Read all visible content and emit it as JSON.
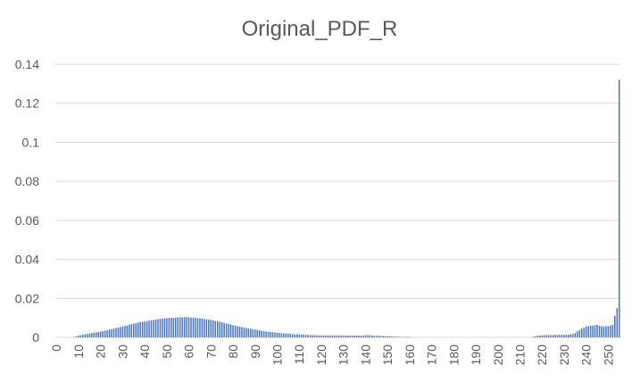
{
  "chart_data": {
    "type": "bar",
    "title": "Original_PDF_R",
    "color": "#4472c4",
    "categories": [
      "0",
      null,
      null,
      null,
      null,
      null,
      null,
      null,
      null,
      null,
      "10",
      null,
      null,
      null,
      null,
      null,
      null,
      null,
      null,
      null,
      "20",
      null,
      null,
      null,
      null,
      null,
      null,
      null,
      null,
      null,
      "30",
      null,
      null,
      null,
      null,
      null,
      null,
      null,
      null,
      null,
      "40",
      null,
      null,
      null,
      null,
      null,
      null,
      null,
      null,
      null,
      "50",
      null,
      null,
      null,
      null,
      null,
      null,
      null,
      null,
      null,
      "60",
      null,
      null,
      null,
      null,
      null,
      null,
      null,
      null,
      null,
      "70",
      null,
      null,
      null,
      null,
      null,
      null,
      null,
      null,
      null,
      "80",
      null,
      null,
      null,
      null,
      null,
      null,
      null,
      null,
      null,
      "90",
      null,
      null,
      null,
      null,
      null,
      null,
      null,
      null,
      null,
      "100",
      null,
      null,
      null,
      null,
      null,
      null,
      null,
      null,
      null,
      "110",
      null,
      null,
      null,
      null,
      null,
      null,
      null,
      null,
      null,
      "120",
      null,
      null,
      null,
      null,
      null,
      null,
      null,
      null,
      null,
      "130",
      null,
      null,
      null,
      null,
      null,
      null,
      null,
      null,
      null,
      "140",
      null,
      null,
      null,
      null,
      null,
      null,
      null,
      null,
      null,
      "150",
      null,
      null,
      null,
      null,
      null,
      null,
      null,
      null,
      null,
      "160",
      null,
      null,
      null,
      null,
      null,
      null,
      null,
      null,
      null,
      "170",
      null,
      null,
      null,
      null,
      null,
      null,
      null,
      null,
      null,
      "180",
      null,
      null,
      null,
      null,
      null,
      null,
      null,
      null,
      null,
      "190",
      null,
      null,
      null,
      null,
      null,
      null,
      null,
      null,
      null,
      "200",
      null,
      null,
      null,
      null,
      null,
      null,
      null,
      null,
      null,
      "210",
      null,
      null,
      null,
      null,
      null,
      null,
      null,
      null,
      null,
      "220",
      null,
      null,
      null,
      null,
      null,
      null,
      null,
      null,
      null,
      "230",
      null,
      null,
      null,
      null,
      null,
      null,
      null,
      null,
      null,
      "240",
      null,
      null,
      null,
      null,
      null,
      null,
      null,
      null,
      null,
      "250",
      null,
      null,
      null,
      null,
      null
    ],
    "values": [
      0,
      0,
      0,
      0,
      0,
      0,
      0,
      0,
      0.0002,
      0.0005,
      0.001,
      0.0012,
      0.0014,
      0.0016,
      0.0018,
      0.002,
      0.0022,
      0.0024,
      0.0026,
      0.0028,
      0.003,
      0.0032,
      0.0034,
      0.0037,
      0.004,
      0.0042,
      0.0045,
      0.0048,
      0.005,
      0.0053,
      0.0056,
      0.0059,
      0.0062,
      0.0065,
      0.0068,
      0.007,
      0.0073,
      0.0076,
      0.0078,
      0.008,
      0.0082,
      0.0084,
      0.0086,
      0.0088,
      0.009,
      0.0092,
      0.0093,
      0.0095,
      0.0096,
      0.0097,
      0.0098,
      0.0099,
      0.01,
      0.01,
      0.0101,
      0.0102,
      0.0103,
      0.0103,
      0.0104,
      0.0104,
      0.0103,
      0.0102,
      0.0101,
      0.01,
      0.0099,
      0.0098,
      0.0097,
      0.0095,
      0.0093,
      0.0091,
      0.0089,
      0.0087,
      0.0085,
      0.0082,
      0.008,
      0.0077,
      0.0074,
      0.0071,
      0.0068,
      0.0066,
      0.0063,
      0.006,
      0.0058,
      0.0055,
      0.0053,
      0.005,
      0.0048,
      0.0046,
      0.0044,
      0.0042,
      0.004,
      0.0038,
      0.0036,
      0.0034,
      0.0032,
      0.003,
      0.0029,
      0.0028,
      0.0026,
      0.0025,
      0.0024,
      0.0023,
      0.0022,
      0.0021,
      0.002,
      0.0019,
      0.0018,
      0.0017,
      0.0016,
      0.0016,
      0.0015,
      0.0014,
      0.0014,
      0.0013,
      0.0013,
      0.0012,
      0.0012,
      0.0011,
      0.0011,
      0.001,
      0.001,
      0.001,
      0.001,
      0.001,
      0.001,
      0.001,
      0.001,
      0.001,
      0.001,
      0.001,
      0.0009,
      0.001,
      0.0009,
      0.001,
      0.0009,
      0.001,
      0.0009,
      0.001,
      0.0009,
      0.001,
      0.0011,
      0.0012,
      0.0011,
      0.001,
      0.0009,
      0.0008,
      0.0008,
      0.0007,
      0.0007,
      0.0006,
      0.0006,
      0.0005,
      0.0005,
      0.0004,
      0.0004,
      0.0003,
      0.0002,
      0.0002,
      0.0001,
      0.0003,
      0,
      0,
      0,
      0,
      0,
      0,
      0,
      0,
      0,
      0,
      0,
      0,
      0,
      0,
      0,
      0,
      0,
      0,
      0,
      0,
      0,
      0,
      0,
      0,
      0,
      0,
      0,
      0,
      0,
      0,
      0,
      0,
      0,
      0,
      0,
      0,
      0,
      0,
      0,
      0,
      0,
      0,
      0,
      0,
      0,
      0,
      0,
      0,
      0,
      0,
      0,
      0,
      0,
      0,
      0,
      0,
      0.0003,
      0.0006,
      0.0008,
      0.001,
      0.001,
      0.0011,
      0.0012,
      0.0011,
      0.0012,
      0.0012,
      0.0013,
      0.0012,
      0.0013,
      0.0013,
      0.0013,
      0.0014,
      0.0014,
      0.0016,
      0.0018,
      0.0022,
      0.003,
      0.0038,
      0.0045,
      0.005,
      0.0055,
      0.0058,
      0.006,
      0.006,
      0.0062,
      0.0065,
      0.006,
      0.0058,
      0.0056,
      0.0057,
      0.0058,
      0.006,
      0.0065,
      0.011,
      0.015,
      0.132
    ],
    "ylim": [
      0,
      0.14
    ],
    "yticks": [
      0,
      0.02,
      0.04,
      0.06,
      0.08,
      0.1,
      0.12,
      0.14
    ],
    "grid": true
  }
}
